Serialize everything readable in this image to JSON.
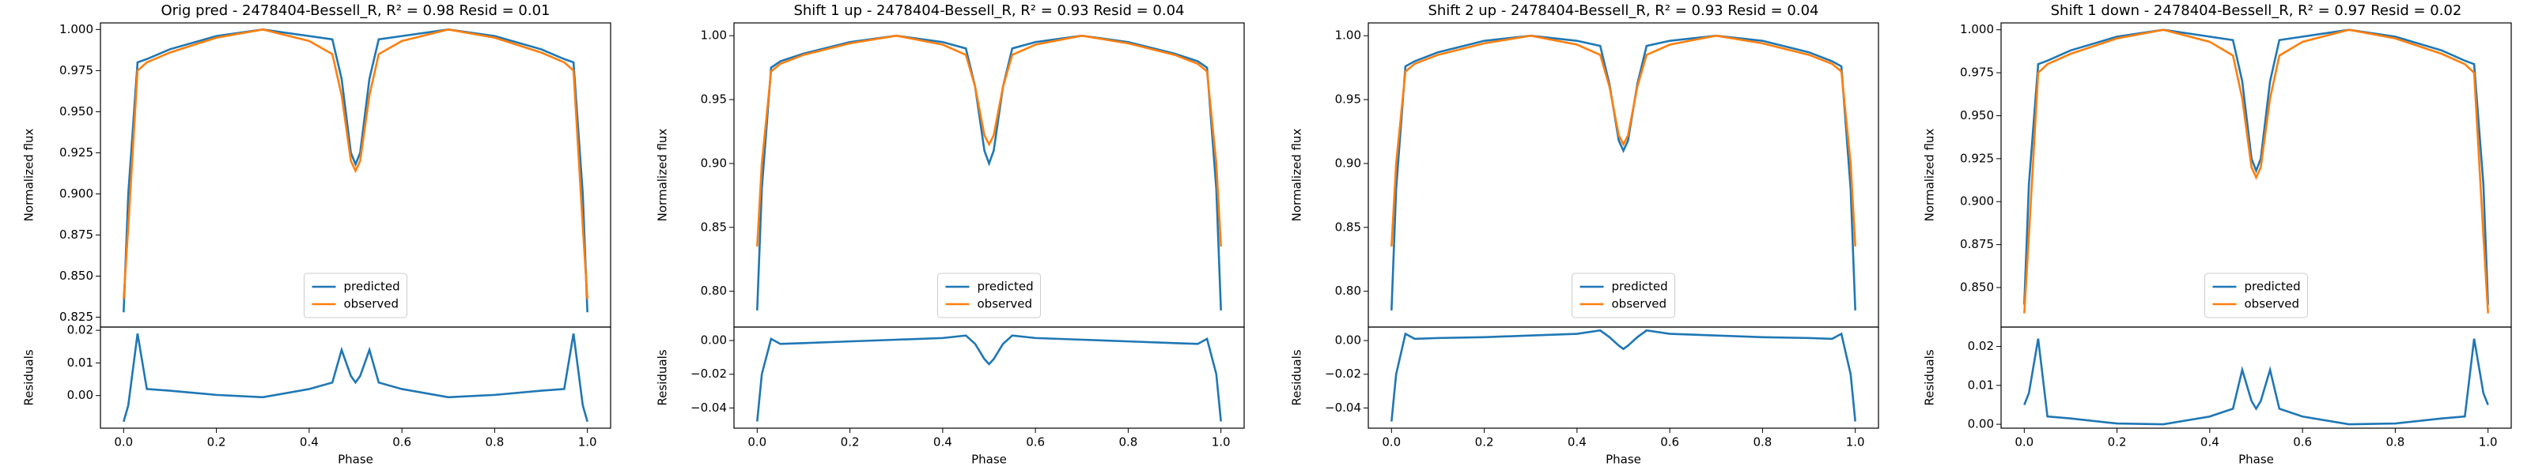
{
  "chart_data": [
    {
      "type": "line",
      "title": "Orig pred - 2478404-Bessell_R, R² = 0.98 Resid = 0.01",
      "ylabel": "Normalized flux",
      "legend": "lower center",
      "xlim": [
        -0.05,
        1.05
      ],
      "ylim": [
        0.819,
        1.004
      ],
      "yticks": [
        0.825,
        {
          "value": 0.85,
          "label": "0.850"
        },
        0.875,
        {
          "value": 0.9,
          "label": "0.900"
        },
        0.925,
        {
          "value": 0.95,
          "label": "0.950"
        },
        0.975,
        {
          "value": 1,
          "label": "1.000"
        }
      ],
      "x": [
        0,
        0.01,
        0.03,
        0.05,
        0.1,
        0.2,
        0.3,
        0.4,
        0.45,
        0.47,
        0.49,
        0.5,
        0.51,
        0.53,
        0.55,
        0.6,
        0.7,
        0.8,
        0.9,
        0.95,
        0.97,
        0.99,
        1
      ],
      "series": [
        {
          "name": "predicted",
          "color": "#1f77b4",
          "values": [
            0.828,
            0.9,
            0.98,
            0.982,
            0.988,
            0.996,
            1,
            0.996,
            0.994,
            0.97,
            0.925,
            0.918,
            0.925,
            0.97,
            0.994,
            0.996,
            1,
            0.996,
            0.988,
            0.982,
            0.98,
            0.9,
            0.828
          ]
        },
        {
          "name": "observed",
          "color": "#ff7f0e",
          "values": [
            0.836,
            0.88,
            0.975,
            0.98,
            0.986,
            0.995,
            1,
            0.993,
            0.985,
            0.96,
            0.92,
            0.914,
            0.92,
            0.96,
            0.985,
            0.993,
            1,
            0.995,
            0.986,
            0.98,
            0.975,
            0.88,
            0.836
          ]
        }
      ]
    },
    {
      "type": "line",
      "xlabel": "Phase",
      "ylabel": "Residuals",
      "xlim": [
        -0.05,
        1.05
      ],
      "xticks": [
        {
          "value": 0,
          "label": "0.0"
        },
        0.2,
        0.4,
        0.6,
        0.8,
        {
          "value": 1,
          "label": "1.0"
        }
      ],
      "ylim": [
        -0.01,
        0.021
      ],
      "yticks": [
        {
          "value": 0,
          "label": "0.00"
        },
        0.01,
        0.02
      ],
      "x": [
        0,
        0.01,
        0.03,
        0.05,
        0.1,
        0.2,
        0.3,
        0.4,
        0.45,
        0.47,
        0.49,
        0.5,
        0.51,
        0.53,
        0.55,
        0.6,
        0.7,
        0.8,
        0.9,
        0.95,
        0.97,
        0.99,
        1
      ],
      "series": [
        {
          "color": "#1f77b4",
          "values": [
            -0.008,
            -0.003,
            0.019,
            0.002,
            0.0015,
            0.0002,
            -0.0005,
            0.002,
            0.004,
            0.014,
            0.006,
            0.004,
            0.006,
            0.014,
            0.004,
            0.002,
            -0.0005,
            0.0002,
            0.0015,
            0.002,
            0.019,
            -0.003,
            -0.008
          ]
        }
      ]
    },
    {
      "type": "line",
      "title": "Shift 1 up - 2478404-Bessell_R, R² = 0.93 Resid = 0.04",
      "ylabel": "Normalized flux",
      "legend": "lower center",
      "xlim": [
        -0.05,
        1.05
      ],
      "ylim": [
        0.772,
        1.01
      ],
      "yticks": [
        {
          "value": 0.8,
          "label": "0.80"
        },
        0.85,
        {
          "value": 0.9,
          "label": "0.90"
        },
        0.95,
        {
          "value": 1,
          "label": "1.00"
        }
      ],
      "x": [
        0,
        0.01,
        0.03,
        0.05,
        0.1,
        0.2,
        0.3,
        0.4,
        0.45,
        0.47,
        0.49,
        0.5,
        0.51,
        0.53,
        0.55,
        0.6,
        0.7,
        0.8,
        0.9,
        0.95,
        0.97,
        0.99,
        1
      ],
      "series": [
        {
          "name": "predicted",
          "color": "#1f77b4",
          "values": [
            0.785,
            0.88,
            0.975,
            0.98,
            0.986,
            0.995,
            1,
            0.995,
            0.99,
            0.96,
            0.91,
            0.9,
            0.91,
            0.96,
            0.99,
            0.995,
            1,
            0.995,
            0.986,
            0.98,
            0.975,
            0.88,
            0.785
          ]
        },
        {
          "name": "observed",
          "color": "#ff7f0e",
          "values": [
            0.835,
            0.9,
            0.972,
            0.978,
            0.985,
            0.994,
            1,
            0.993,
            0.985,
            0.96,
            0.922,
            0.915,
            0.922,
            0.96,
            0.985,
            0.993,
            1,
            0.994,
            0.985,
            0.978,
            0.972,
            0.9,
            0.835
          ]
        }
      ]
    },
    {
      "type": "line",
      "xlabel": "Phase",
      "ylabel": "Residuals",
      "xlim": [
        -0.05,
        1.05
      ],
      "xticks": [
        {
          "value": 0,
          "label": "0.0"
        },
        0.2,
        0.4,
        0.6,
        0.8,
        {
          "value": 1,
          "label": "1.0"
        }
      ],
      "ylim": [
        -0.052,
        0.008
      ],
      "yticks": [
        {
          "value": -0.04,
          "label": "−0.04"
        },
        {
          "value": -0.02,
          "label": "−0.02"
        },
        {
          "value": 0,
          "label": "0.00"
        }
      ],
      "x": [
        0,
        0.01,
        0.03,
        0.05,
        0.1,
        0.2,
        0.3,
        0.4,
        0.45,
        0.47,
        0.49,
        0.5,
        0.51,
        0.53,
        0.55,
        0.6,
        0.7,
        0.8,
        0.9,
        0.95,
        0.97,
        0.99,
        1
      ],
      "series": [
        {
          "color": "#1f77b4",
          "values": [
            -0.048,
            -0.02,
            0.001,
            -0.002,
            -0.0015,
            -0.0005,
            0.0005,
            0.0015,
            0.003,
            -0.002,
            -0.011,
            -0.014,
            -0.011,
            -0.002,
            0.003,
            0.0015,
            0.0005,
            -0.0005,
            -0.0015,
            -0.002,
            0.001,
            -0.02,
            -0.048
          ]
        }
      ]
    },
    {
      "type": "line",
      "title": "Shift 2 up - 2478404-Bessell_R, R² = 0.93 Resid = 0.04",
      "ylabel": "Normalized flux",
      "legend": "lower center",
      "xlim": [
        -0.05,
        1.05
      ],
      "ylim": [
        0.772,
        1.01
      ],
      "yticks": [
        {
          "value": 0.8,
          "label": "0.80"
        },
        0.85,
        {
          "value": 0.9,
          "label": "0.90"
        },
        0.95,
        {
          "value": 1,
          "label": "1.00"
        }
      ],
      "x": [
        0,
        0.01,
        0.03,
        0.05,
        0.1,
        0.2,
        0.3,
        0.4,
        0.45,
        0.47,
        0.49,
        0.5,
        0.51,
        0.53,
        0.55,
        0.6,
        0.7,
        0.8,
        0.9,
        0.95,
        0.97,
        0.99,
        1
      ],
      "series": [
        {
          "name": "predicted",
          "color": "#1f77b4",
          "values": [
            0.785,
            0.88,
            0.976,
            0.98,
            0.987,
            0.996,
            1,
            0.996,
            0.992,
            0.962,
            0.918,
            0.91,
            0.918,
            0.962,
            0.992,
            0.996,
            1,
            0.996,
            0.987,
            0.98,
            0.976,
            0.88,
            0.785
          ]
        },
        {
          "name": "observed",
          "color": "#ff7f0e",
          "values": [
            0.835,
            0.9,
            0.972,
            0.978,
            0.985,
            0.994,
            1,
            0.993,
            0.985,
            0.96,
            0.922,
            0.915,
            0.922,
            0.96,
            0.985,
            0.993,
            1,
            0.994,
            0.985,
            0.978,
            0.972,
            0.9,
            0.835
          ]
        }
      ]
    },
    {
      "type": "line",
      "xlabel": "Phase",
      "ylabel": "Residuals",
      "xlim": [
        -0.05,
        1.05
      ],
      "xticks": [
        {
          "value": 0,
          "label": "0.0"
        },
        0.2,
        0.4,
        0.6,
        0.8,
        {
          "value": 1,
          "label": "1.0"
        }
      ],
      "ylim": [
        -0.052,
        0.008
      ],
      "yticks": [
        {
          "value": -0.04,
          "label": "−0.04"
        },
        {
          "value": -0.02,
          "label": "−0.02"
        },
        {
          "value": 0,
          "label": "0.00"
        }
      ],
      "x": [
        0,
        0.01,
        0.03,
        0.05,
        0.1,
        0.2,
        0.3,
        0.4,
        0.45,
        0.47,
        0.49,
        0.5,
        0.51,
        0.53,
        0.55,
        0.6,
        0.7,
        0.8,
        0.9,
        0.95,
        0.97,
        0.99,
        1
      ],
      "series": [
        {
          "color": "#1f77b4",
          "values": [
            -0.048,
            -0.02,
            0.004,
            0.001,
            0.0015,
            0.002,
            0.003,
            0.004,
            0.006,
            0.002,
            -0.003,
            -0.005,
            -0.003,
            0.002,
            0.006,
            0.004,
            0.003,
            0.002,
            0.0015,
            0.001,
            0.004,
            -0.02,
            -0.048
          ]
        }
      ]
    },
    {
      "type": "line",
      "title": "Shift 1 down - 2478404-Bessell_R, R² = 0.97 Resid = 0.02",
      "ylabel": "Normalized flux",
      "legend": "lower center",
      "xlim": [
        -0.05,
        1.05
      ],
      "ylim": [
        0.827,
        1.004
      ],
      "yticks": [
        {
          "value": 0.85,
          "label": "0.850"
        },
        0.875,
        {
          "value": 0.9,
          "label": "0.900"
        },
        0.925,
        {
          "value": 0.95,
          "label": "0.950"
        },
        0.975,
        {
          "value": 1,
          "label": "1.000"
        }
      ],
      "x": [
        0,
        0.01,
        0.03,
        0.05,
        0.1,
        0.2,
        0.3,
        0.4,
        0.45,
        0.47,
        0.49,
        0.5,
        0.51,
        0.53,
        0.55,
        0.6,
        0.7,
        0.8,
        0.9,
        0.95,
        0.97,
        0.99,
        1
      ],
      "series": [
        {
          "name": "predicted",
          "color": "#1f77b4",
          "values": [
            0.84,
            0.91,
            0.98,
            0.982,
            0.988,
            0.996,
            1,
            0.996,
            0.994,
            0.97,
            0.925,
            0.918,
            0.925,
            0.97,
            0.994,
            0.996,
            1,
            0.996,
            0.988,
            0.982,
            0.98,
            0.91,
            0.84
          ]
        },
        {
          "name": "observed",
          "color": "#ff7f0e",
          "values": [
            0.835,
            0.88,
            0.975,
            0.98,
            0.986,
            0.995,
            1,
            0.993,
            0.985,
            0.96,
            0.92,
            0.914,
            0.92,
            0.96,
            0.985,
            0.993,
            1,
            0.995,
            0.986,
            0.98,
            0.975,
            0.88,
            0.835
          ]
        }
      ]
    },
    {
      "type": "line",
      "xlabel": "Phase",
      "ylabel": "Residuals",
      "xlim": [
        -0.05,
        1.05
      ],
      "xticks": [
        {
          "value": 0,
          "label": "0.0"
        },
        0.2,
        0.4,
        0.6,
        0.8,
        {
          "value": 1,
          "label": "1.0"
        }
      ],
      "ylim": [
        -0.001,
        0.025
      ],
      "yticks": [
        {
          "value": 0,
          "label": "0.00"
        },
        0.01,
        0.02
      ],
      "x": [
        0,
        0.01,
        0.03,
        0.05,
        0.1,
        0.2,
        0.3,
        0.4,
        0.45,
        0.47,
        0.49,
        0.5,
        0.51,
        0.53,
        0.55,
        0.6,
        0.7,
        0.8,
        0.9,
        0.95,
        0.97,
        0.99,
        1
      ],
      "series": [
        {
          "color": "#1f77b4",
          "values": [
            0.005,
            0.008,
            0.022,
            0.002,
            0.0015,
            0.0002,
            0,
            0.002,
            0.004,
            0.014,
            0.006,
            0.004,
            0.006,
            0.014,
            0.004,
            0.002,
            0,
            0.0002,
            0.0015,
            0.002,
            0.022,
            0.008,
            0.005
          ]
        }
      ]
    }
  ]
}
